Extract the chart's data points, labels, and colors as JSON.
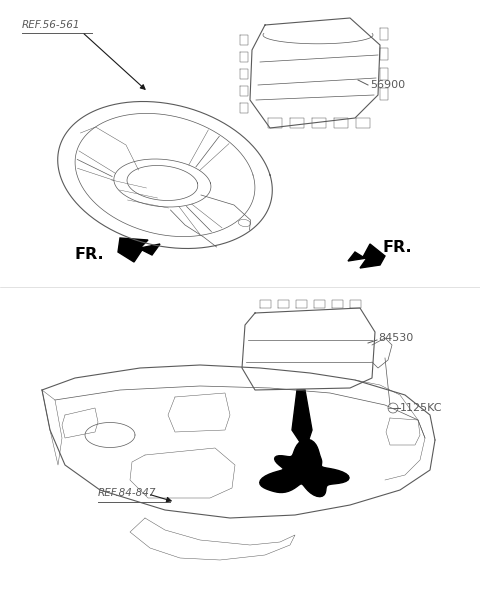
{
  "bg_color": "#ffffff",
  "line_color": "#5a5a5a",
  "dark_color": "#1a1a1a",
  "label_color": "#5a5a5a",
  "labels": {
    "ref56561": "REF.56-561",
    "part56900": "56900",
    "ref84847": "REF.84-847",
    "part84530": "84530",
    "part1125kc": "1125KC",
    "fr": "FR."
  },
  "font_size_ref": 7.5,
  "font_size_part": 8.0,
  "font_size_fr": 11.5,
  "fig_w": 4.8,
  "fig_h": 5.91,
  "dpi": 100
}
